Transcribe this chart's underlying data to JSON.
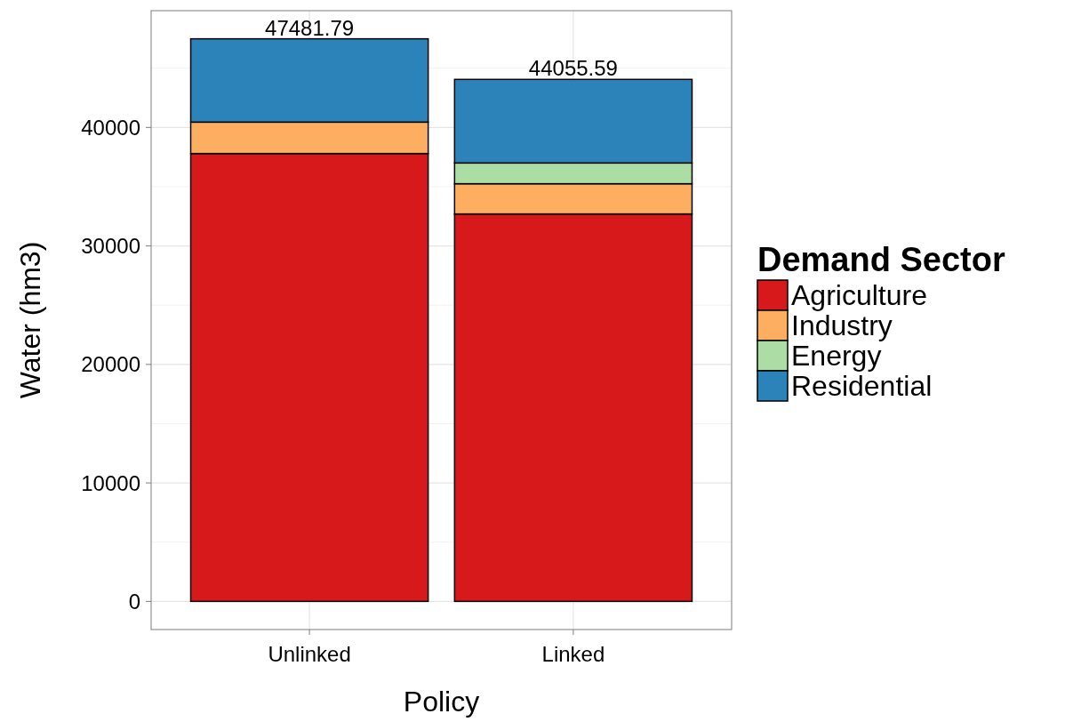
{
  "chart_data": {
    "type": "bar",
    "stacked": true,
    "xlabel": "Policy",
    "ylabel": "Water (hm3)",
    "legend_title": "Demand Sector",
    "legend": "right",
    "categories": [
      "Unlinked",
      "Linked"
    ],
    "series": [
      {
        "name": "Agriculture",
        "color": "#d7191c",
        "values": [
          37800,
          32700
        ]
      },
      {
        "name": "Industry",
        "color": "#fdae61",
        "values": [
          2650,
          2550
        ]
      },
      {
        "name": "Energy",
        "color": "#abdda4",
        "values": [
          0,
          1750
        ]
      },
      {
        "name": "Residential",
        "color": "#2b83ba",
        "values": [
          7031.79,
          7055.59
        ]
      }
    ],
    "totals": [
      "47481.79",
      "44055.59"
    ],
    "ylim": [
      -2374,
      49856
    ],
    "yticks": [
      0,
      10000,
      20000,
      30000,
      40000
    ],
    "grid": true
  }
}
